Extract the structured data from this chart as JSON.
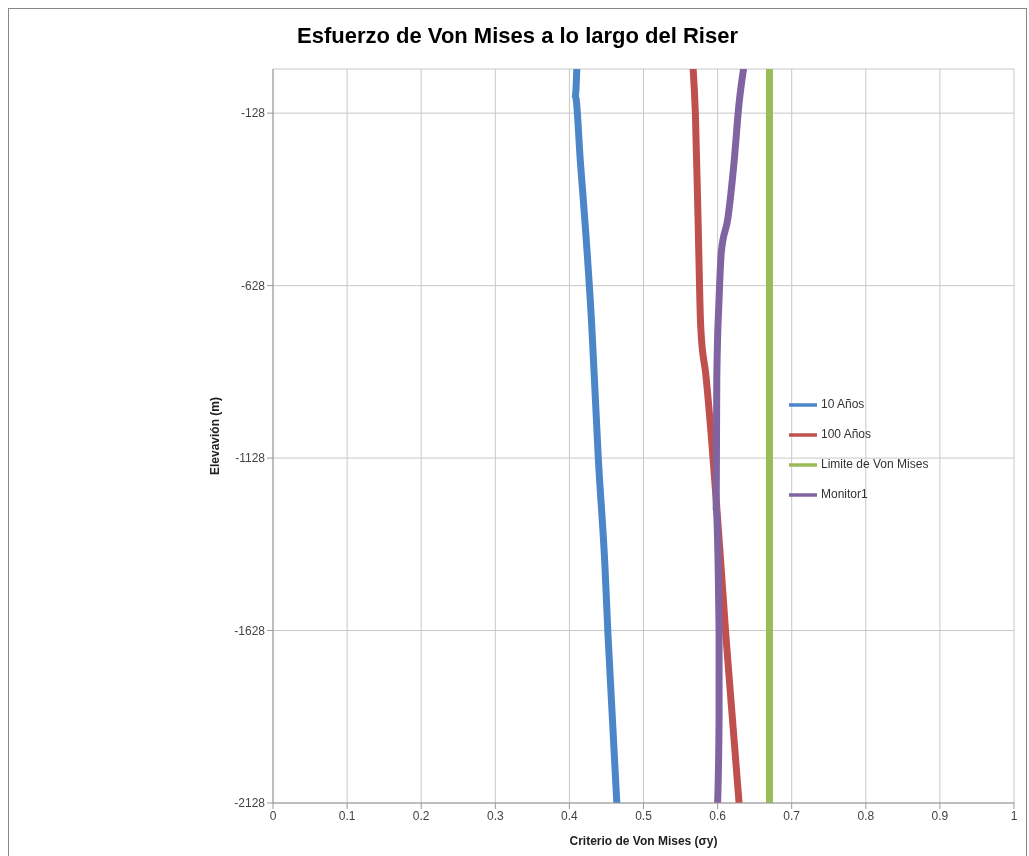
{
  "chart_data": {
    "type": "line",
    "title": "Esfuerzo de Von Mises a lo largo del Riser",
    "xlabel": "Criterio de Von Mises  (σy)",
    "ylabel": "Elevavión (m)",
    "xlim": [
      0,
      1
    ],
    "xticks": [
      0,
      0.1,
      0.2,
      0.3,
      0.4,
      0.5,
      0.6,
      0.7,
      0.8,
      0.9,
      1
    ],
    "ylim": [
      -2128,
      0
    ],
    "yticks": [
      -128,
      -628,
      -1128,
      -1628,
      -2128
    ],
    "grid": true,
    "legend": "right",
    "marker": "none",
    "series": [
      {
        "name": "Limite de Von Mises",
        "color": "#9bbb59",
        "x": [
          0.67,
          0.67
        ],
        "values": [
          0,
          -2128
        ]
      },
      {
        "name": "10 Años",
        "color": "#4a86c8",
        "x": [
          0.41,
          0.408,
          0.415,
          0.422,
          0.43,
          0.439,
          0.448,
          0.452,
          0.464
        ],
        "values": [
          0,
          -78,
          -275,
          -472,
          -737,
          -1128,
          -1443,
          -1637,
          -2128
        ]
      },
      {
        "name": "100 Años",
        "color": "#c0504d",
        "x": [
          0.567,
          0.57,
          0.574,
          0.577,
          0.578,
          0.584,
          0.592,
          0.599,
          0.603,
          0.611,
          0.62,
          0.629
        ],
        "values": [
          0,
          -128,
          -472,
          -737,
          -775,
          -884,
          -1078,
          -1275,
          -1393,
          -1637,
          -1884,
          -2128
        ]
      },
      {
        "name": "Monitor1",
        "color": "#8064a2",
        "x": [
          0.635,
          0.629,
          0.622,
          0.614,
          0.605,
          0.602,
          0.599,
          0.598,
          0.602,
          0.602,
          0.6
        ],
        "values": [
          0,
          -99,
          -275,
          -431,
          -531,
          -666,
          -884,
          -1275,
          -1637,
          -1884,
          -2128
        ]
      }
    ]
  }
}
